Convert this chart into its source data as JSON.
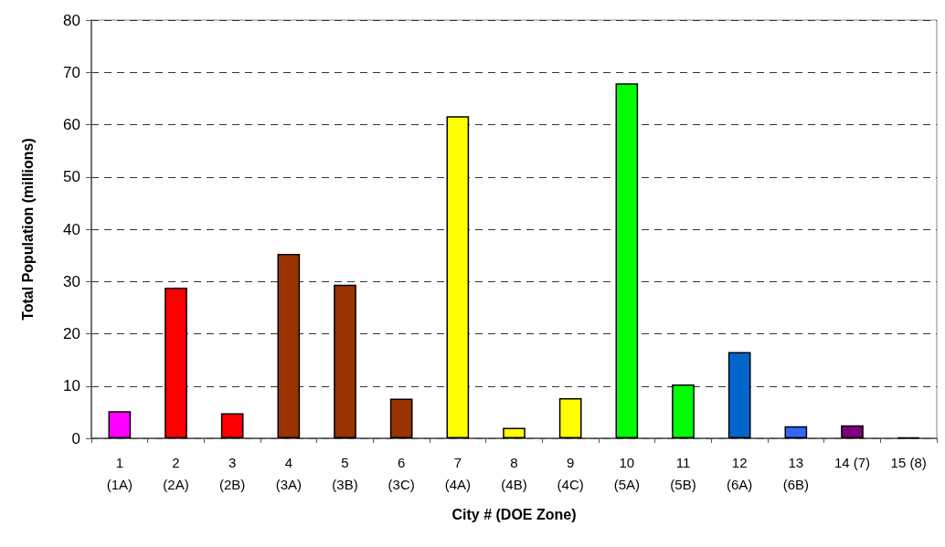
{
  "chart_data": {
    "type": "bar",
    "xlabel": "City # (DOE Zone)",
    "ylabel": "Total Population (millions)",
    "categories": [
      "1\n(1A)",
      "2\n(2A)",
      "3\n(2B)",
      "4\n(3A)",
      "5\n(3B)",
      "6\n(3C)",
      "7\n(4A)",
      "8\n(4B)",
      "9\n(4C)",
      "10\n(5A)",
      "11\n(5B)",
      "12\n(6A)",
      "13\n(6B)",
      "14 (7)",
      "15 (8)"
    ],
    "values": [
      5.2,
      28.8,
      4.8,
      35.3,
      29.4,
      7.6,
      61.6,
      2.0,
      7.7,
      67.9,
      10.3,
      16.5,
      2.3,
      2.5,
      0.2
    ],
    "colors": [
      "#ff00ff",
      "#ff0000",
      "#ff0000",
      "#993300",
      "#993300",
      "#993300",
      "#ffff00",
      "#ffff00",
      "#ffff00",
      "#00ff00",
      "#00ff00",
      "#0066cc",
      "#3366ff",
      "#800080",
      "#000000"
    ],
    "ylim": [
      0,
      80
    ],
    "yticks": [
      0,
      10,
      20,
      30,
      40,
      50,
      60,
      70,
      80
    ],
    "grid": "y"
  }
}
